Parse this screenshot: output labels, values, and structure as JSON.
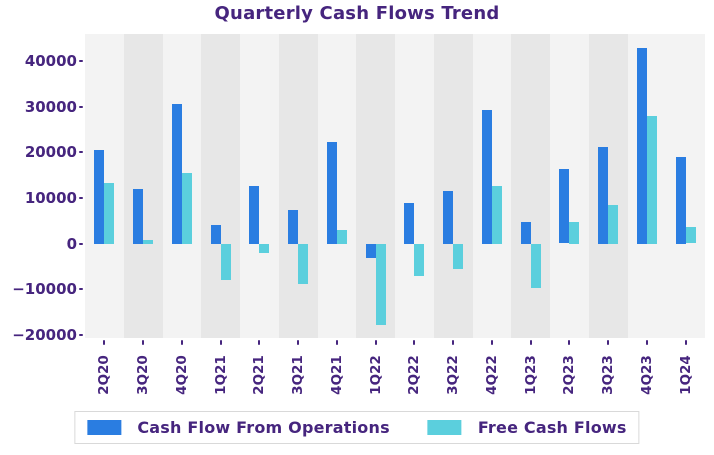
{
  "chart_data": {
    "type": "bar",
    "title": "Quarterly Cash Flows Trend",
    "categories": [
      "2Q20",
      "3Q20",
      "4Q20",
      "1Q21",
      "2Q21",
      "3Q21",
      "4Q21",
      "1Q22",
      "2Q22",
      "3Q22",
      "4Q22",
      "1Q23",
      "2Q23",
      "3Q23",
      "4Q23",
      "1Q24"
    ],
    "series": [
      {
        "name": "Cash Flow From Operations",
        "color": "#2a7de1",
        "values": [
          20500,
          11900,
          30500,
          4000,
          12700,
          7300,
          22200,
          -3200,
          8800,
          11400,
          29300,
          4700,
          16400,
          21200,
          42800,
          19000
        ]
      },
      {
        "name": "Free Cash Flows",
        "color": "#5bcfdd",
        "values": [
          13200,
          800,
          15500,
          -8000,
          -2000,
          -8900,
          2900,
          -17900,
          -7200,
          -5500,
          12500,
          -9700,
          4800,
          8500,
          28000,
          3700
        ]
      }
    ],
    "y_ticks": [
      40000,
      30000,
      20000,
      10000,
      0,
      -10000,
      -20000
    ],
    "ylim": [
      -20700,
      45900
    ],
    "xlabel": "",
    "ylabel": "",
    "grid": false,
    "legend_position": "bottom",
    "text_color": "#46257e",
    "band_light_color": "#f3f3f3",
    "band_dark_color": "#e7e7e7",
    "dark_band_indices": [
      1,
      3,
      5,
      7,
      9,
      11,
      13
    ]
  }
}
